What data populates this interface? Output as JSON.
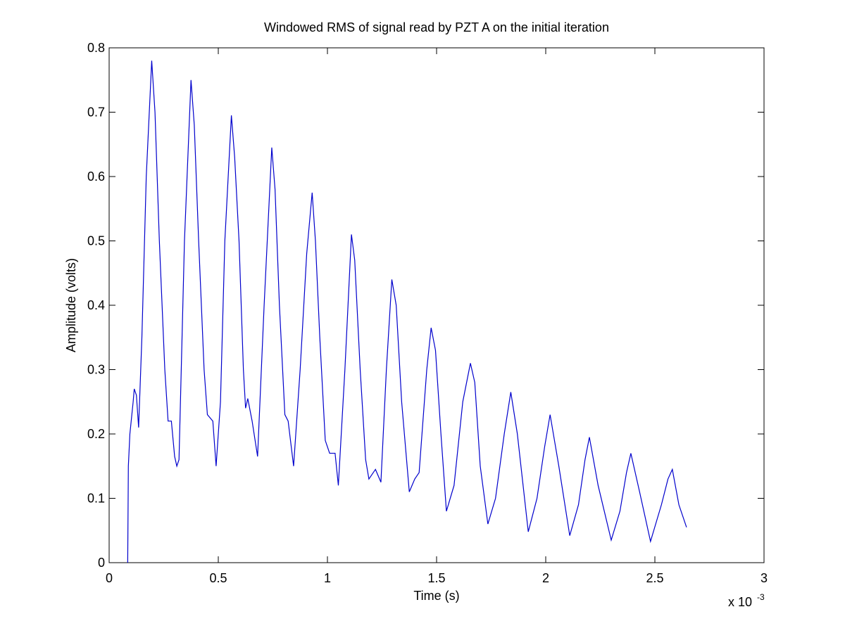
{
  "chart_data": {
    "type": "line",
    "title": "Windowed RMS of signal read by PZT A on the initial iteration",
    "x_label": "Time (s)",
    "y_label": "Amplitude (volts)",
    "x_exponent_base": "x 10",
    "x_exponent": "-3",
    "xlim": [
      0,
      3
    ],
    "ylim": [
      0,
      0.8
    ],
    "xticks": [
      0,
      0.5,
      1,
      1.5,
      2,
      2.5,
      3
    ],
    "yticks": [
      0,
      0.1,
      0.2,
      0.3,
      0.4,
      0.5,
      0.6,
      0.7,
      0.8
    ],
    "grid": false,
    "x": [
      0.085,
      0.088,
      0.095,
      0.11,
      0.115,
      0.125,
      0.135,
      0.15,
      0.17,
      0.195,
      0.21,
      0.23,
      0.255,
      0.27,
      0.285,
      0.3,
      0.31,
      0.32,
      0.345,
      0.375,
      0.39,
      0.41,
      0.435,
      0.45,
      0.475,
      0.49,
      0.51,
      0.53,
      0.56,
      0.575,
      0.595,
      0.615,
      0.625,
      0.635,
      0.655,
      0.68,
      0.71,
      0.745,
      0.76,
      0.78,
      0.805,
      0.82,
      0.845,
      0.875,
      0.905,
      0.93,
      0.945,
      0.965,
      0.99,
      1.01,
      1.035,
      1.05,
      1.08,
      1.11,
      1.125,
      1.15,
      1.175,
      1.19,
      1.22,
      1.245,
      1.27,
      1.295,
      1.315,
      1.34,
      1.375,
      1.4,
      1.42,
      1.455,
      1.475,
      1.495,
      1.52,
      1.545,
      1.58,
      1.62,
      1.655,
      1.675,
      1.7,
      1.735,
      1.77,
      1.81,
      1.84,
      1.87,
      1.92,
      1.96,
      1.995,
      2.02,
      2.06,
      2.11,
      2.15,
      2.18,
      2.2,
      2.24,
      2.3,
      2.34,
      2.37,
      2.39,
      2.43,
      2.48,
      2.53,
      2.56,
      2.58,
      2.61,
      2.645
    ],
    "series": [
      {
        "color": "#0000cc",
        "values": [
          0,
          0.15,
          0.2,
          0.25,
          0.27,
          0.26,
          0.21,
          0.35,
          0.6,
          0.78,
          0.7,
          0.5,
          0.3,
          0.22,
          0.22,
          0.165,
          0.15,
          0.16,
          0.5,
          0.75,
          0.68,
          0.5,
          0.3,
          0.23,
          0.22,
          0.15,
          0.25,
          0.5,
          0.695,
          0.63,
          0.5,
          0.3,
          0.24,
          0.255,
          0.22,
          0.165,
          0.4,
          0.645,
          0.58,
          0.4,
          0.23,
          0.22,
          0.15,
          0.3,
          0.48,
          0.575,
          0.5,
          0.35,
          0.19,
          0.17,
          0.17,
          0.12,
          0.3,
          0.51,
          0.47,
          0.3,
          0.16,
          0.13,
          0.145,
          0.125,
          0.3,
          0.44,
          0.4,
          0.25,
          0.11,
          0.13,
          0.14,
          0.3,
          0.365,
          0.33,
          0.2,
          0.08,
          0.12,
          0.25,
          0.31,
          0.28,
          0.15,
          0.06,
          0.1,
          0.2,
          0.265,
          0.2,
          0.048,
          0.1,
          0.18,
          0.23,
          0.15,
          0.042,
          0.09,
          0.16,
          0.195,
          0.12,
          0.035,
          0.08,
          0.14,
          0.17,
          0.11,
          0.033,
          0.09,
          0.13,
          0.145,
          0.09,
          0.055
        ]
      }
    ]
  }
}
